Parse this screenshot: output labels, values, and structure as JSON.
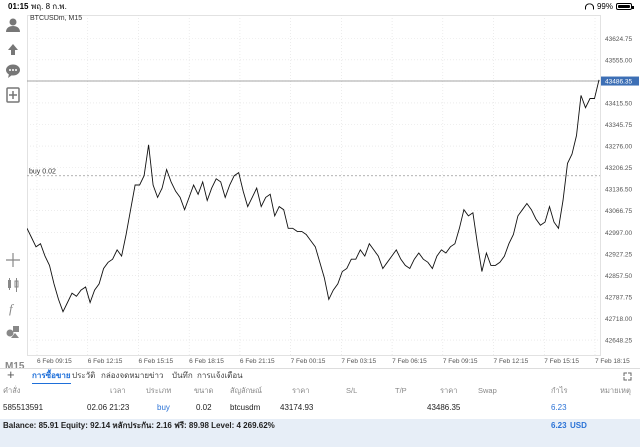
{
  "status_bar": {
    "time": "01:15",
    "date": "พฤ. 8 ก.พ.",
    "battery": "99%"
  },
  "chart": {
    "symbol_label": "BTCUSDm, M15",
    "current_price": "43486.35",
    "order_line_label": "buy 0.02",
    "timeframe": "M15",
    "colors": {
      "price_line": "#111111",
      "current_price_badge": "#3d6fb5",
      "grid": "#d9d9d9",
      "order_line": "#999999"
    }
  },
  "chart_data": {
    "type": "line",
    "ylim": [
      42600,
      43700
    ],
    "y_ticks": [
      "43624.75",
      "43555.00",
      "43486.35",
      "43415.50",
      "43345.75",
      "43276.00",
      "43206.25",
      "43136.50",
      "43066.75",
      "42997.00",
      "42927.25",
      "42857.50",
      "42787.75",
      "42718.00",
      "42648.25"
    ],
    "x_ticks": [
      "6 Feb 09:15",
      "6 Feb 12:15",
      "6 Feb 15:15",
      "6 Feb 18:15",
      "6 Feb 21:15",
      "7 Feb 00:15",
      "7 Feb 03:15",
      "7 Feb 06:15",
      "7 Feb 09:15",
      "7 Feb 12:15",
      "7 Feb 15:15",
      "7 Feb 18:15"
    ],
    "order_level": 43180,
    "series": [
      {
        "values": [
          43010,
          42980,
          42950,
          42960,
          42920,
          42890,
          42830,
          42780,
          42740,
          42770,
          42800,
          42790,
          42810,
          42820,
          42770,
          42810,
          42830,
          42880,
          42900,
          42910,
          42940,
          42920,
          42990,
          43070,
          43150,
          43150,
          43180,
          43280,
          43150,
          43110,
          43140,
          43200,
          43160,
          43130,
          43110,
          43070,
          43110,
          43150,
          43120,
          43160,
          43100,
          43140,
          43170,
          43160,
          43110,
          43150,
          43180,
          43190,
          43130,
          43080,
          43110,
          43140,
          43080,
          43110,
          43120,
          43050,
          43080,
          43070,
          43010,
          43010,
          43000,
          43000,
          42990,
          42970,
          42950,
          42900,
          42850,
          42780,
          42810,
          42830,
          42870,
          42880,
          42910,
          42910,
          42940,
          42920,
          42960,
          42940,
          42920,
          42880,
          42900,
          42920,
          42940,
          42910,
          42890,
          42880,
          42910,
          42930,
          42910,
          42900,
          42880,
          42920,
          42940,
          42930,
          42950,
          42960,
          43010,
          43070,
          43050,
          43060,
          42960,
          42870,
          42930,
          42890,
          42890,
          42900,
          42920,
          42960,
          42990,
          43050,
          43070,
          43090,
          43070,
          43040,
          43020,
          43030,
          43080,
          43030,
          43010,
          43100,
          43220,
          43250,
          43310,
          43440,
          43400,
          43430,
          43430,
          43490
        ]
      }
    ]
  },
  "bottom_tabs": {
    "items": [
      "การซื้อขาย",
      "ประวัติ",
      "กล่องจดหมาย",
      "ข่าว",
      "บันทึก",
      "การแจ้งเตือน"
    ]
  },
  "positions_table": {
    "headers": [
      "คำสั่ง",
      "เวลา",
      "ประเภท",
      "ขนาด",
      "สัญลักษณ์",
      "ราคา",
      "S/L",
      "T/P",
      "ราคา",
      "Swap",
      "กำไร",
      "หมายเหตุ"
    ],
    "row": {
      "order": "585513591",
      "time": "02.06 21:23",
      "type": "buy",
      "volume": "0.02",
      "symbol": "btcusdm",
      "open_price": "43174.93",
      "current_price": "43486.35",
      "profit": "6.23"
    }
  },
  "balance_bar": {
    "text": "Balance: 85.91 Equity: 92.14 หลักประกัน: 2.16 ฟรี: 89.98 Level: 4 269.62%",
    "profit": "6.23",
    "currency": "USD"
  }
}
